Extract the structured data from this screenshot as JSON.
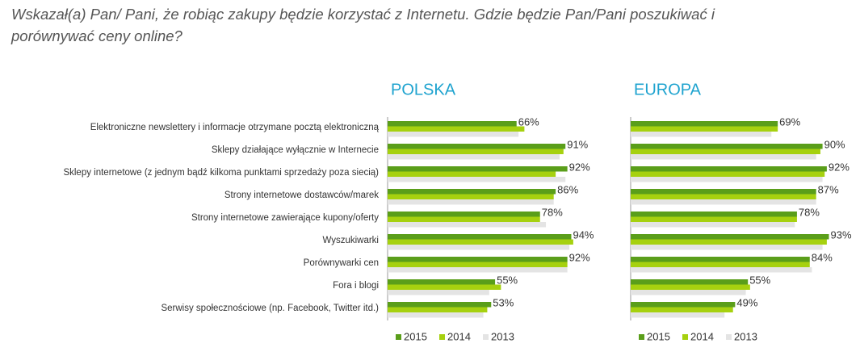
{
  "heading": [
    "Wskazał(a) Pan/ Pani, że robiąc zakupy będzie korzystać z Internetu. Gdzie będzie Pan/Pani poszukiwać i",
    "porównywać ceny online?"
  ],
  "chart_data": [
    {
      "type": "bar",
      "orientation": "horizontal",
      "title": "POLSKA",
      "categories": [
        "Elektroniczne newslettery i informacje otrzymane pocztą elektroniczną",
        "Sklepy działające wyłącznie w Internecie",
        "Sklepy internetowe (z jednym bądź kilkoma punktami sprzedaży poza siecią)",
        "Strony internetowe dostawców/marek",
        "Strony internetowe zawierające kupony/oferty",
        "Wyszukiwarki",
        "Porównywarki cen",
        "Fora i blogi",
        "Serwisy społecznościowe (np. Facebook, Twitter itd.)"
      ],
      "series": [
        {
          "name": "2015",
          "color": "#5a9e1a",
          "values": [
            66,
            91,
            92,
            86,
            78,
            94,
            92,
            55,
            53
          ],
          "value_labels": [
            "66%",
            "91%",
            "92%",
            "86%",
            "78%",
            "94%",
            "92%",
            "55%",
            "53%"
          ]
        },
        {
          "name": "2014",
          "color": "#a6d10f",
          "values": [
            70,
            90,
            86,
            85,
            78,
            95,
            92,
            58,
            51
          ]
        },
        {
          "name": "2013",
          "color": "#e4e4e4",
          "values": [
            67,
            88,
            91,
            85,
            81,
            93,
            92,
            52,
            49
          ]
        }
      ],
      "xlim": [
        0,
        100
      ],
      "legend": "bottom"
    },
    {
      "type": "bar",
      "orientation": "horizontal",
      "title": "EUROPA",
      "series": [
        {
          "name": "2015",
          "color": "#5a9e1a",
          "values": [
            69,
            90,
            92,
            87,
            78,
            93,
            84,
            55,
            49
          ],
          "value_labels": [
            "69%",
            "90%",
            "92%",
            "87%",
            "78%",
            "93%",
            "84%",
            "55%",
            "49%"
          ]
        },
        {
          "name": "2014",
          "color": "#a6d10f",
          "values": [
            69,
            89,
            91,
            87,
            78,
            92,
            84,
            56,
            48
          ]
        },
        {
          "name": "2013",
          "color": "#e4e4e4",
          "values": [
            66,
            87,
            90,
            87,
            77,
            90,
            85,
            54,
            44
          ]
        }
      ],
      "xlim": [
        0,
        100
      ],
      "legend": "bottom"
    }
  ]
}
